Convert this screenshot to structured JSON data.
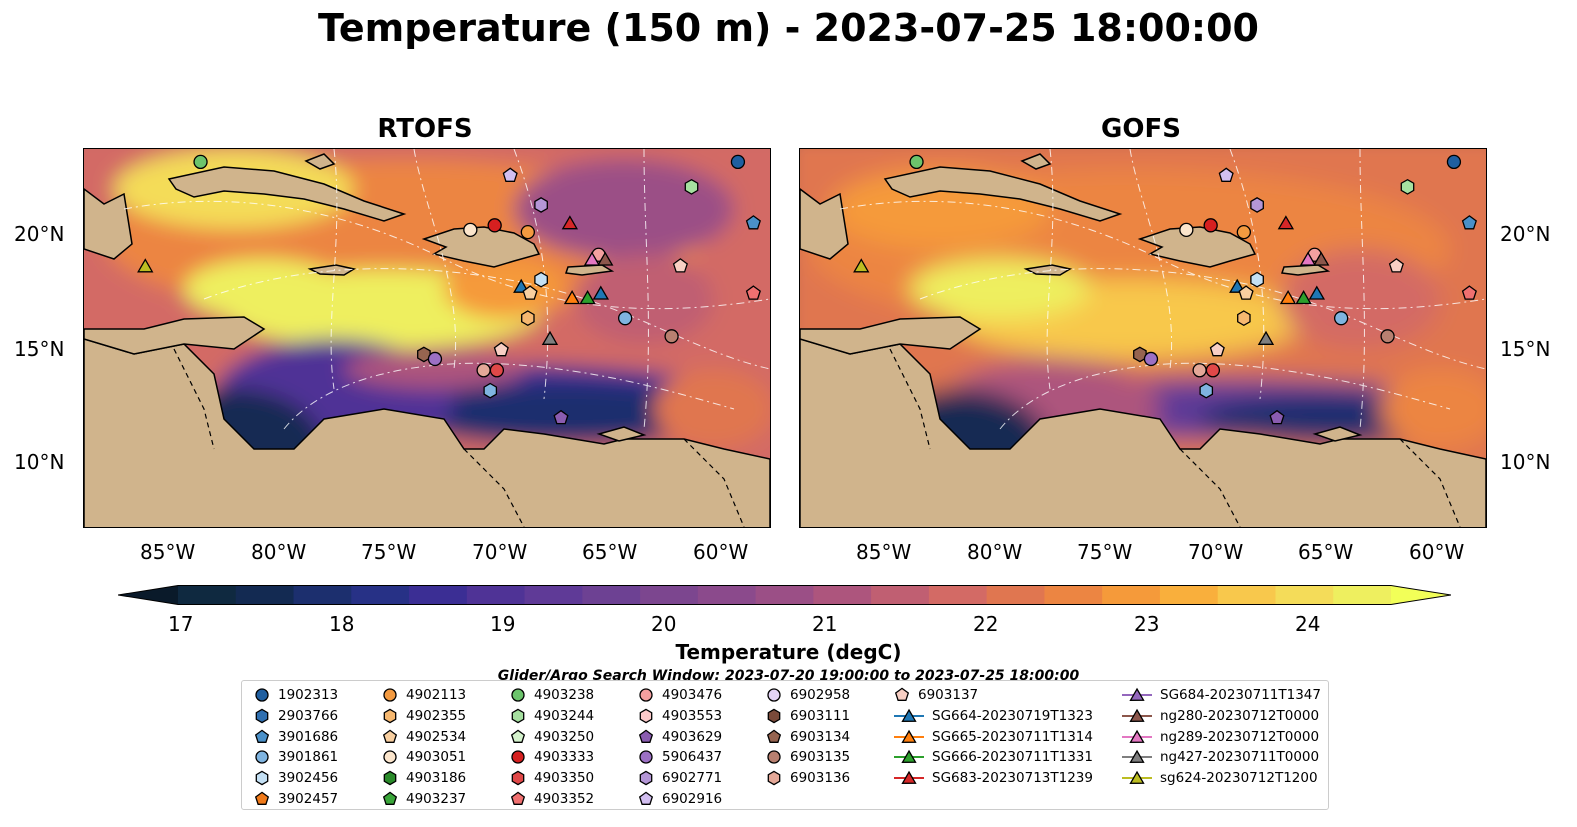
{
  "title": "Temperature (150 m) - 2023-07-25 18:00:00",
  "panels": [
    {
      "name": "RTOFS"
    },
    {
      "name": "GOFS"
    }
  ],
  "lat_ticks": [
    "20°N",
    "15°N",
    "10°N"
  ],
  "lon_ticks": [
    "85°W",
    "80°W",
    "75°W",
    "70°W",
    "65°W",
    "60°W"
  ],
  "colorbar": {
    "label": "Temperature (degC)",
    "ticks": [
      "17",
      "18",
      "19",
      "20",
      "21",
      "22",
      "23",
      "24"
    ],
    "min": 16.75,
    "max": 24.5,
    "colors": [
      "#0f2940",
      "#132a52",
      "#1c2f6e",
      "#273186",
      "#3b2e94",
      "#4f3396",
      "#5f3a97",
      "#6d4193",
      "#7c468f",
      "#8b4a8c",
      "#9b4f86",
      "#ad557d",
      "#c05f72",
      "#d36a65",
      "#e07650",
      "#ec8542",
      "#f59a3a",
      "#f9af3c",
      "#f8c84c",
      "#f4dc59",
      "#eeef5f"
    ]
  },
  "search_window": "Glider/Argo Search Window: 2023-07-20 19:00:00 to 2023-07-25 18:00:00",
  "legend": [
    [
      {
        "label": "1902313",
        "marker": "circle",
        "color": "#1f5fa0"
      },
      {
        "label": "2903766",
        "marker": "hexagon",
        "color": "#2f6fb0"
      },
      {
        "label": "3901686",
        "marker": "pentagon",
        "color": "#4a90c8"
      },
      {
        "label": "3901861",
        "marker": "circle",
        "color": "#7fb4e0"
      },
      {
        "label": "3902456",
        "marker": "hexagon",
        "color": "#c4e0f4"
      },
      {
        "label": "3902457",
        "marker": "pentagon",
        "color": "#f07a1a"
      }
    ],
    [
      {
        "label": "4902113",
        "marker": "circle",
        "color": "#f39a40"
      },
      {
        "label": "4902355",
        "marker": "hexagon",
        "color": "#f6b870"
      },
      {
        "label": "4902534",
        "marker": "pentagon",
        "color": "#f8cfa0"
      },
      {
        "label": "4903051",
        "marker": "circle",
        "color": "#fbe5cc"
      },
      {
        "label": "4903186",
        "marker": "hexagon",
        "color": "#2a8a2a"
      },
      {
        "label": "4903237",
        "marker": "pentagon",
        "color": "#3aa63a"
      }
    ],
    [
      {
        "label": "4903238",
        "marker": "circle",
        "color": "#6cc46c"
      },
      {
        "label": "4903244",
        "marker": "hexagon",
        "color": "#a6e0a0"
      },
      {
        "label": "4903250",
        "marker": "pentagon",
        "color": "#d4f2cc"
      },
      {
        "label": "4903333",
        "marker": "circle",
        "color": "#d62020"
      },
      {
        "label": "4903350",
        "marker": "hexagon",
        "color": "#e04848"
      },
      {
        "label": "4903352",
        "marker": "pentagon",
        "color": "#f07070"
      }
    ],
    [
      {
        "label": "4903476",
        "marker": "circle",
        "color": "#f4a0a0"
      },
      {
        "label": "4903553",
        "marker": "hexagon",
        "color": "#fccaca"
      },
      {
        "label": "4903629",
        "marker": "pentagon",
        "color": "#8a5cb0"
      },
      {
        "label": "5906437",
        "marker": "circle",
        "color": "#9c70c4"
      },
      {
        "label": "6902771",
        "marker": "hexagon",
        "color": "#b496d6"
      },
      {
        "label": "6902916",
        "marker": "pentagon",
        "color": "#d2bef0"
      }
    ],
    [
      {
        "label": "6902958",
        "marker": "circle",
        "color": "#e4d4f6"
      },
      {
        "label": "6903111",
        "marker": "hexagon",
        "color": "#7a4a3a"
      },
      {
        "label": "6903134",
        "marker": "pentagon",
        "color": "#966450"
      },
      {
        "label": "6903135",
        "marker": "circle",
        "color": "#b88070"
      },
      {
        "label": "6903136",
        "marker": "hexagon",
        "color": "#e4a898"
      }
    ],
    [
      {
        "label": "6903137",
        "marker": "pentagon",
        "color": "#f8cfc4"
      },
      {
        "label": "SG664-20230719T1323",
        "marker": "triangle",
        "color": "#1f77b4"
      },
      {
        "label": "SG665-20230711T1314",
        "marker": "triangle",
        "color": "#ff7f0e"
      },
      {
        "label": "SG666-20230711T1331",
        "marker": "triangle",
        "color": "#2ca02c"
      },
      {
        "label": "SG683-20230713T1239",
        "marker": "triangle",
        "color": "#d62728"
      }
    ],
    [
      {
        "label": "SG684-20230711T1347",
        "marker": "triangle",
        "color": "#9467bd"
      },
      {
        "label": "ng280-20230712T0000",
        "marker": "triangle",
        "color": "#8c564b"
      },
      {
        "label": "ng289-20230712T0000",
        "marker": "triangle",
        "color": "#e377c2"
      },
      {
        "label": "ng427-20230711T0000",
        "marker": "triangle",
        "color": "#7f7f7f"
      },
      {
        "label": "sg624-20230712T1200",
        "marker": "triangle",
        "color": "#bcbd22"
      }
    ]
  ],
  "platforms": [
    {
      "lon": -83.8,
      "lat": 23.2,
      "marker": "circle",
      "color": "#6cc46c"
    },
    {
      "lon": -59.5,
      "lat": 23.2,
      "marker": "circle",
      "color": "#1f5fa0"
    },
    {
      "lon": -69.8,
      "lat": 22.6,
      "marker": "pentagon",
      "color": "#d2bef0"
    },
    {
      "lon": -61.6,
      "lat": 22.1,
      "marker": "hexagon",
      "color": "#a6e0a0"
    },
    {
      "lon": -68.4,
      "lat": 21.3,
      "marker": "hexagon",
      "color": "#b496d6"
    },
    {
      "lon": -58.8,
      "lat": 20.5,
      "marker": "pentagon",
      "color": "#4a90c8"
    },
    {
      "lon": -67.1,
      "lat": 20.5,
      "marker": "triangle",
      "color": "#d62728"
    },
    {
      "lon": -70.5,
      "lat": 20.4,
      "marker": "circle",
      "color": "#d62020"
    },
    {
      "lon": -71.6,
      "lat": 20.2,
      "marker": "circle",
      "color": "#fbe5cc"
    },
    {
      "lon": -69.0,
      "lat": 20.1,
      "marker": "circle",
      "color": "#f39a40"
    },
    {
      "lon": -65.8,
      "lat": 19.1,
      "marker": "circle",
      "color": "#f4a0a0"
    },
    {
      "lon": -65.5,
      "lat": 18.9,
      "marker": "triangle",
      "color": "#8c564b"
    },
    {
      "lon": -66.1,
      "lat": 18.9,
      "marker": "triangle",
      "color": "#e377c2"
    },
    {
      "lon": -62.1,
      "lat": 18.6,
      "marker": "pentagon",
      "color": "#f8cfc4"
    },
    {
      "lon": -86.3,
      "lat": 18.6,
      "marker": "triangle",
      "color": "#bcbd22"
    },
    {
      "lon": -68.4,
      "lat": 18.0,
      "marker": "hexagon",
      "color": "#c4e0f4"
    },
    {
      "lon": -69.3,
      "lat": 17.7,
      "marker": "triangle",
      "color": "#1f77b4"
    },
    {
      "lon": -68.9,
      "lat": 17.4,
      "marker": "pentagon",
      "color": "#f8cfa0"
    },
    {
      "lon": -66.3,
      "lat": 17.2,
      "marker": "triangle",
      "color": "#2ca02c"
    },
    {
      "lon": -67.0,
      "lat": 17.2,
      "marker": "triangle",
      "color": "#ff7f0e"
    },
    {
      "lon": -65.7,
      "lat": 17.4,
      "marker": "triangle",
      "color": "#1f77b4"
    },
    {
      "lon": -58.8,
      "lat": 17.4,
      "marker": "pentagon",
      "color": "#f07070"
    },
    {
      "lon": -69.0,
      "lat": 16.3,
      "marker": "hexagon",
      "color": "#f6b870"
    },
    {
      "lon": -64.6,
      "lat": 16.3,
      "marker": "circle",
      "color": "#7fb4e0"
    },
    {
      "lon": -62.5,
      "lat": 15.5,
      "marker": "circle",
      "color": "#b88070"
    },
    {
      "lon": -68.0,
      "lat": 15.4,
      "marker": "triangle",
      "color": "#7f7f7f"
    },
    {
      "lon": -70.2,
      "lat": 14.9,
      "marker": "pentagon",
      "color": "#f8cfc4"
    },
    {
      "lon": -73.7,
      "lat": 14.7,
      "marker": "hexagon",
      "color": "#966450"
    },
    {
      "lon": -73.2,
      "lat": 14.5,
      "marker": "circle",
      "color": "#9c70c4"
    },
    {
      "lon": -71.0,
      "lat": 14.0,
      "marker": "circle",
      "color": "#e4a898"
    },
    {
      "lon": -70.4,
      "lat": 14.0,
      "marker": "circle",
      "color": "#e04848"
    },
    {
      "lon": -70.7,
      "lat": 13.1,
      "marker": "hexagon",
      "color": "#7fb4e0"
    },
    {
      "lon": -67.5,
      "lat": 11.9,
      "marker": "pentagon",
      "color": "#8a5cb0"
    }
  ]
}
